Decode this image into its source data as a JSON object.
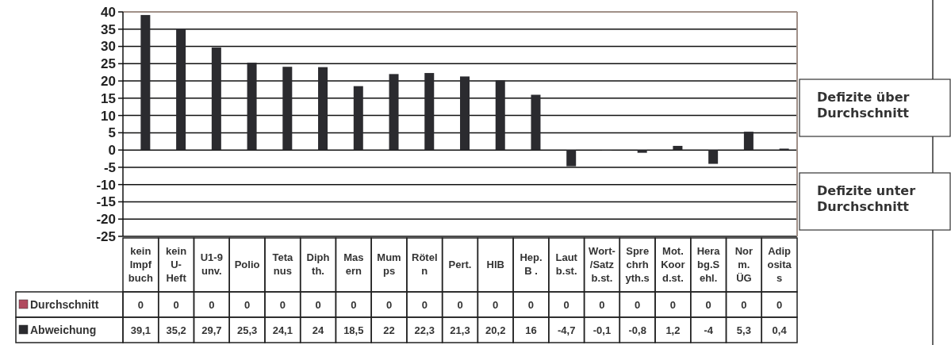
{
  "chart_data": {
    "type": "bar",
    "categories": [
      "kein\nImpf\nbuch",
      "kein\nU-\nHeft",
      "U1-9\nunv.",
      "Polio",
      "Teta\nnus",
      "Diph\nth.",
      "Mas\nern",
      "Mum\nps",
      "Rötel\nn",
      "Pert.",
      "HIB",
      "Hep.\nB .",
      "Laut\nb.st.",
      "Wort-\n/Satz\nb.st.",
      "Spre\nchrh\nyth.s",
      "Mot.\nKoor\nd.st.",
      "Hera\nbg.S\nehl.",
      "Nor\nm.\nÜG",
      "Adip\nosita\ns"
    ],
    "series": [
      {
        "name": "Durchschnitt",
        "color": "#b04a5e",
        "values": [
          0,
          0,
          0,
          0,
          0,
          0,
          0,
          0,
          0,
          0,
          0,
          0,
          0,
          0,
          0,
          0,
          0,
          0,
          0
        ],
        "value_labels": [
          "0",
          "0",
          "0",
          "0",
          "0",
          "0",
          "0",
          "0",
          "0",
          "0",
          "0",
          "0",
          "0",
          "0",
          "0",
          "0",
          "0",
          "0",
          "0"
        ]
      },
      {
        "name": "Abweichung",
        "color": "#2b2b2f",
        "values": [
          39.1,
          35.2,
          29.7,
          25.3,
          24.1,
          24,
          18.5,
          22,
          22.3,
          21.3,
          20.2,
          16,
          -4.7,
          -0.1,
          -0.8,
          1.2,
          -4,
          5.3,
          0.4
        ],
        "value_labels": [
          "39,1",
          "35,2",
          "29,7",
          "25,3",
          "24,1",
          "24",
          "18,5",
          "22",
          "22,3",
          "21,3",
          "20,2",
          "16",
          "-4,7",
          "-0,1",
          "-0,8",
          "1,2",
          "-4",
          "5,3",
          "0,4"
        ]
      }
    ],
    "ylim": [
      -25,
      40
    ],
    "yticks": [
      -25,
      -20,
      -15,
      -10,
      -5,
      0,
      5,
      10,
      15,
      20,
      25,
      30,
      35,
      40
    ],
    "grid": "y",
    "legend": "bottom",
    "annotations": [
      "Defizite über Durchschnitt",
      "Defizite unter Durchschnitt"
    ]
  }
}
